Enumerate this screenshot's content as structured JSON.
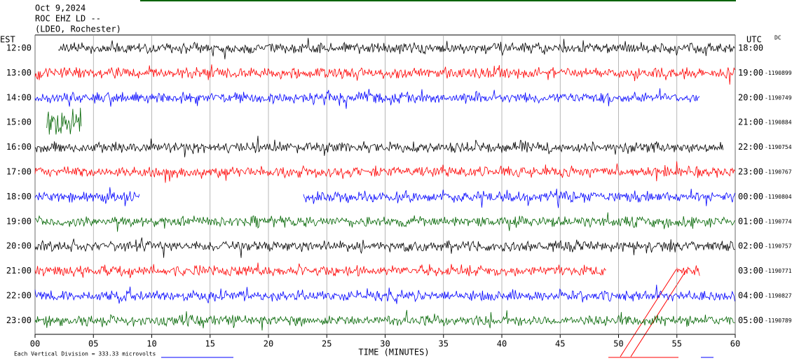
{
  "chart_data": {
    "type": "helicorder",
    "title": "Oct 9,2024",
    "subtitle": "ROC EHZ LD --",
    "location": "(LDEO, Rochester)",
    "left_axis_label": "EST",
    "right_axis_label": "UTC",
    "corner_label": "DC",
    "x_label": "TIME (MINUTES)",
    "note": "Each Vertical Division =  333.33 microvolts",
    "xlim": [
      0,
      60
    ],
    "xticks": [
      {
        "value": 0,
        "label": "00"
      },
      {
        "value": 5,
        "label": "05"
      },
      10,
      15,
      20,
      25,
      30,
      35,
      40,
      45,
      50,
      55,
      60
    ],
    "grid": true,
    "rows": [
      {
        "est": "12:00",
        "utc": "18:00",
        "color": "#000000",
        "segments": [
          [
            2,
            60
          ]
        ]
      },
      {
        "est": "13:00",
        "utc": "19:00",
        "code": "-1190899",
        "color": "#ff0000",
        "segments": [
          [
            0,
            60
          ]
        ]
      },
      {
        "est": "14:00",
        "utc": "20:00",
        "code": "-1190749",
        "color": "#0000ff",
        "segments": [
          [
            0,
            57
          ]
        ]
      },
      {
        "est": "15:00",
        "utc": "21:00",
        "code": "-1190884",
        "color": "#006400",
        "segments": [
          [
            1,
            4
          ]
        ]
      },
      {
        "est": "16:00",
        "utc": "22:00",
        "code": "-1190754",
        "color": "#000000",
        "segments": [
          [
            0,
            59
          ]
        ]
      },
      {
        "est": "17:00",
        "utc": "23:00",
        "code": "-1190767",
        "color": "#ff0000",
        "segments": [
          [
            0,
            60
          ]
        ]
      },
      {
        "est": "18:00",
        "utc": "00:00",
        "code": "-1190804",
        "color": "#0000ff",
        "segments": [
          [
            0,
            9
          ],
          [
            23,
            60
          ]
        ]
      },
      {
        "est": "19:00",
        "utc": "01:00",
        "code": "-1190774",
        "color": "#006400",
        "segments": [
          [
            0,
            60
          ]
        ]
      },
      {
        "est": "20:00",
        "utc": "02:00",
        "code": "-1190757",
        "color": "#000000",
        "segments": [
          [
            0,
            60
          ]
        ]
      },
      {
        "est": "21:00",
        "utc": "03:00",
        "code": "-1190771",
        "color": "#ff0000",
        "segments": [
          [
            0,
            49
          ],
          [
            55,
            57
          ]
        ]
      },
      {
        "est": "22:00",
        "utc": "04:00",
        "code": "-1190827",
        "color": "#0000ff",
        "segments": [
          [
            0,
            60
          ]
        ]
      },
      {
        "est": "23:00",
        "utc": "05:00",
        "code": "-1190789",
        "color": "#006400",
        "segments": [
          [
            0,
            60
          ]
        ]
      }
    ]
  }
}
